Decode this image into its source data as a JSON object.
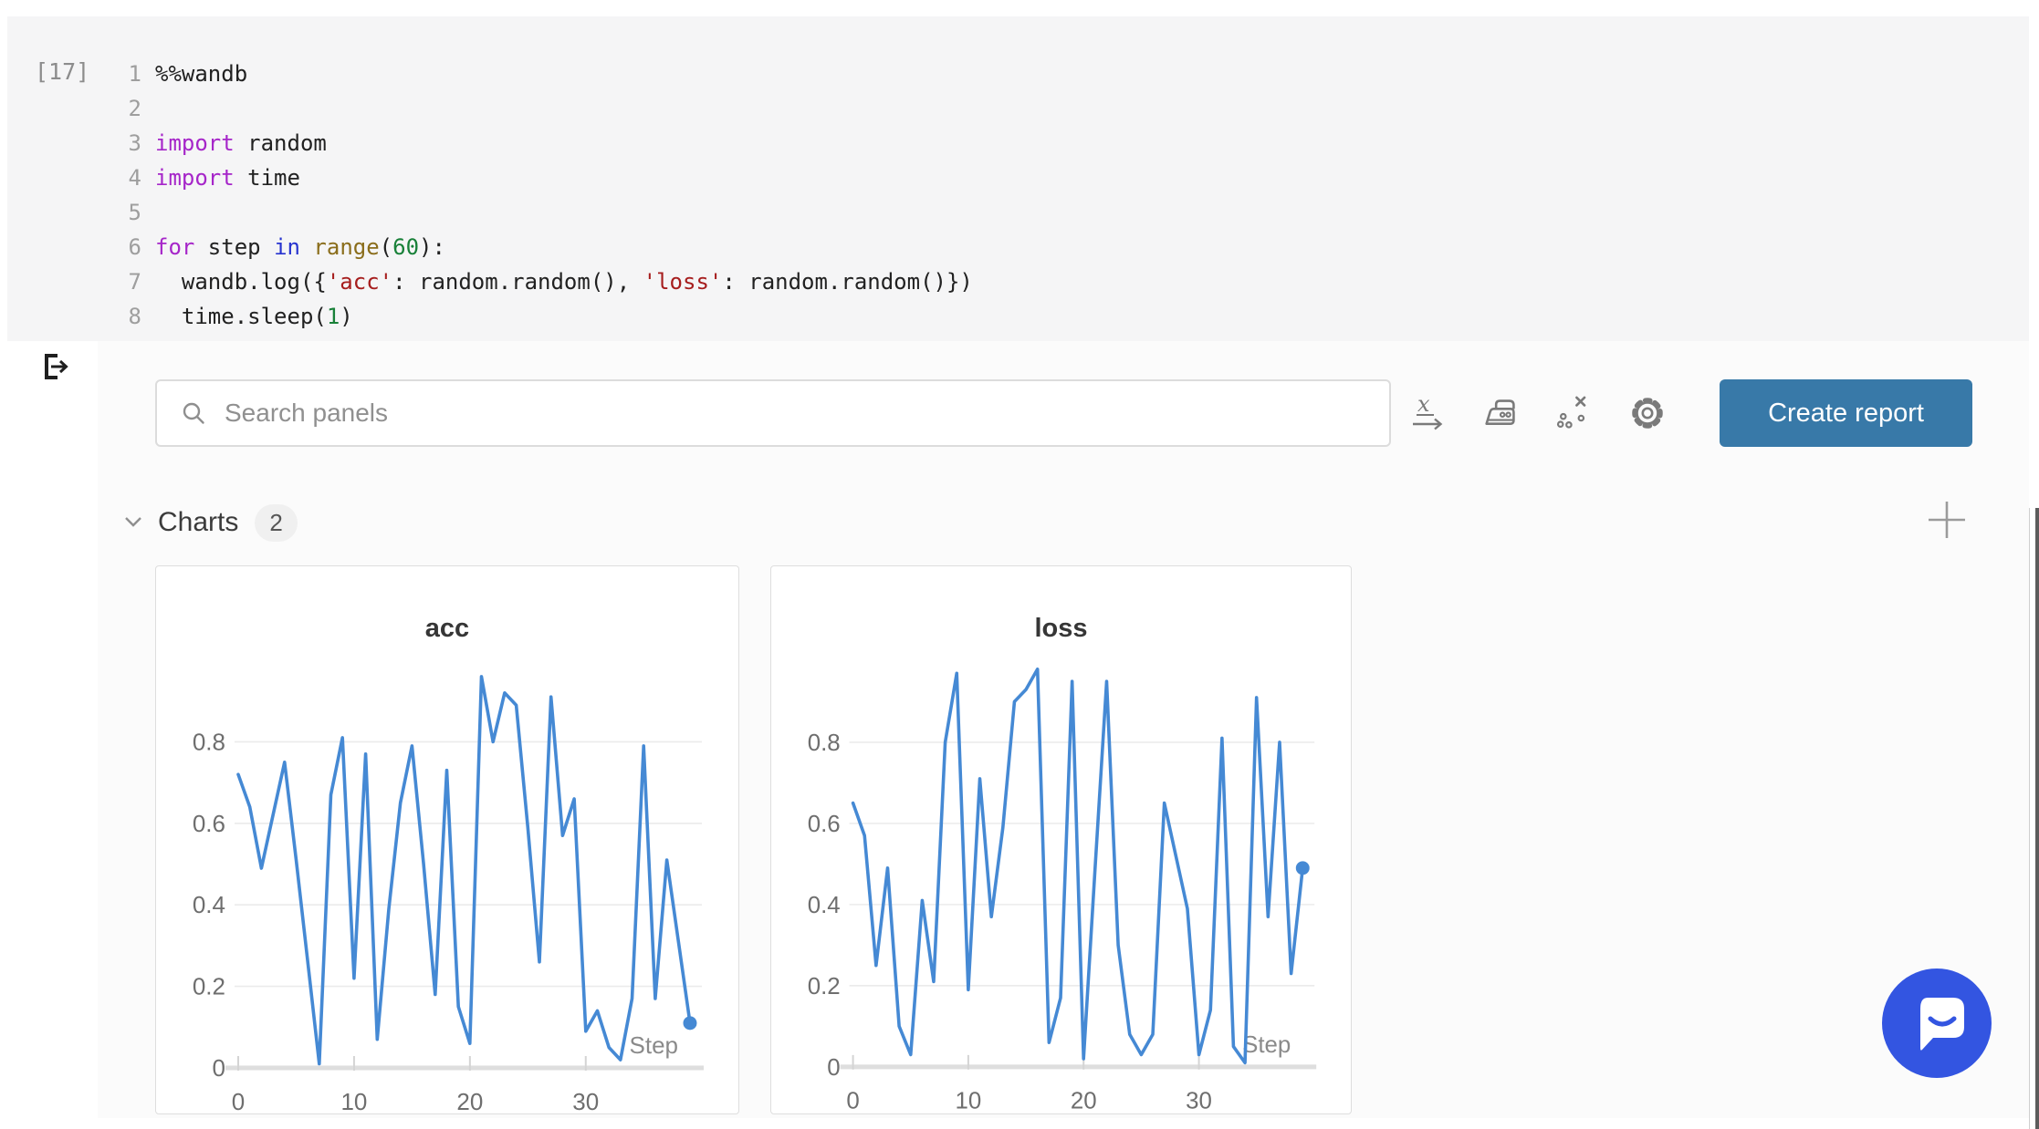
{
  "code_cell": {
    "execution_count": "[17]",
    "lines": [
      {
        "num": "1",
        "tokens": [
          {
            "c": "plain",
            "t": "%%wandb"
          }
        ]
      },
      {
        "num": "2",
        "tokens": []
      },
      {
        "num": "3",
        "tokens": [
          {
            "c": "kw",
            "t": "import"
          },
          {
            "c": "plain",
            "t": " random"
          }
        ]
      },
      {
        "num": "4",
        "tokens": [
          {
            "c": "kw",
            "t": "import"
          },
          {
            "c": "plain",
            "t": " time"
          }
        ]
      },
      {
        "num": "5",
        "tokens": []
      },
      {
        "num": "6",
        "tokens": [
          {
            "c": "kw",
            "t": "for"
          },
          {
            "c": "plain",
            "t": " step "
          },
          {
            "c": "kw2",
            "t": "in"
          },
          {
            "c": "plain",
            "t": " "
          },
          {
            "c": "fn",
            "t": "range"
          },
          {
            "c": "plain",
            "t": "("
          },
          {
            "c": "num",
            "t": "60"
          },
          {
            "c": "plain",
            "t": "):"
          }
        ]
      },
      {
        "num": "7",
        "tokens": [
          {
            "c": "plain",
            "t": "  wandb.log({"
          },
          {
            "c": "str",
            "t": "'acc'"
          },
          {
            "c": "plain",
            "t": ": random.random(), "
          },
          {
            "c": "str",
            "t": "'loss'"
          },
          {
            "c": "plain",
            "t": ": random.random()})"
          }
        ]
      },
      {
        "num": "8",
        "tokens": [
          {
            "c": "plain",
            "t": "  time.sleep("
          },
          {
            "c": "num",
            "t": "1"
          },
          {
            "c": "plain",
            "t": ")"
          }
        ]
      }
    ]
  },
  "toolbar": {
    "search_placeholder": "Search panels",
    "create_report_label": "Create report",
    "icons": [
      "x-axis-icon",
      "smoothing-iron-icon",
      "outliers-icon",
      "settings-gear-icon"
    ]
  },
  "sections": {
    "charts": {
      "label": "Charts",
      "count": "2"
    }
  },
  "chart_data": [
    {
      "type": "line",
      "title": "acc",
      "xlabel": "Step",
      "x_ticks": [
        "0",
        "10",
        "20",
        "30"
      ],
      "y_ticks": [
        "0",
        "0.2",
        "0.4",
        "0.6",
        "0.8"
      ],
      "ylim": [
        0,
        1.0
      ],
      "xlim": [
        0,
        39
      ],
      "grid": "horizontal",
      "legend": "none",
      "series": [
        {
          "name": "acc",
          "values": [
            0.72,
            0.64,
            0.49,
            0.62,
            0.75,
            0.51,
            0.26,
            0.01,
            0.67,
            0.81,
            0.22,
            0.77,
            0.07,
            0.39,
            0.65,
            0.79,
            0.5,
            0.18,
            0.73,
            0.15,
            0.06,
            0.96,
            0.8,
            0.92,
            0.89,
            0.59,
            0.26,
            0.91,
            0.57,
            0.66,
            0.09,
            0.14,
            0.05,
            0.02,
            0.17,
            0.79,
            0.17,
            0.51,
            0.31,
            0.11
          ]
        }
      ]
    },
    {
      "type": "line",
      "title": "loss",
      "xlabel": "Step",
      "x_ticks": [
        "0",
        "10",
        "20",
        "30"
      ],
      "y_ticks": [
        "0",
        "0.2",
        "0.4",
        "0.6",
        "0.8"
      ],
      "ylim": [
        0,
        1.0
      ],
      "xlim": [
        0,
        39
      ],
      "grid": "horizontal",
      "legend": "none",
      "series": [
        {
          "name": "loss",
          "values": [
            0.65,
            0.57,
            0.25,
            0.49,
            0.1,
            0.03,
            0.41,
            0.21,
            0.8,
            0.97,
            0.19,
            0.71,
            0.37,
            0.59,
            0.9,
            0.93,
            0.98,
            0.06,
            0.17,
            0.95,
            0.02,
            0.49,
            0.95,
            0.3,
            0.08,
            0.03,
            0.08,
            0.65,
            0.52,
            0.39,
            0.03,
            0.14,
            0.81,
            0.05,
            0.01,
            0.91,
            0.37,
            0.8,
            0.23,
            0.49
          ]
        }
      ]
    }
  ],
  "colors": {
    "line_blue": "#4589d4",
    "button_blue": "#3879a8",
    "intercom_blue": "#3355e1",
    "grid_gray": "#ebebeb",
    "axis_gray": "#dedede",
    "tick_text_gray": "#6e6e6e"
  }
}
